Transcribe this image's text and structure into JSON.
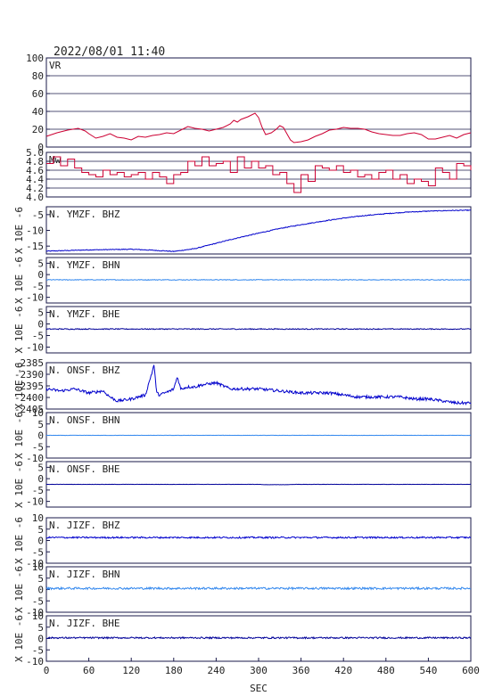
{
  "chart_data": {
    "type": "line",
    "title": "2022/08/01  11:40",
    "xlabel": "SEC",
    "xlim": [
      0,
      600
    ],
    "xticks": [
      "0",
      "60",
      "120",
      "180",
      "240",
      "300",
      "360",
      "420",
      "480",
      "540",
      "600"
    ],
    "panels": [
      {
        "label": "VR",
        "ylabel": "",
        "ylim": [
          0,
          100
        ],
        "yticks": [
          "0",
          "20",
          "40",
          "60",
          "80",
          "100"
        ],
        "grid": true,
        "color": "#cc0033",
        "x": [
          0,
          15,
          30,
          45,
          55,
          60,
          70,
          80,
          90,
          100,
          110,
          120,
          130,
          140,
          150,
          160,
          170,
          180,
          190,
          200,
          210,
          220,
          230,
          240,
          250,
          260,
          265,
          270,
          275,
          285,
          295,
          300,
          305,
          310,
          318,
          325,
          330,
          335,
          340,
          345,
          350,
          360,
          370,
          380,
          390,
          400,
          410,
          420,
          430,
          440,
          450,
          460,
          470,
          480,
          490,
          500,
          510,
          520,
          530,
          540,
          550,
          560,
          570,
          580,
          590,
          600
        ],
        "values": [
          12,
          16,
          19,
          21,
          18,
          15,
          10,
          12,
          15,
          11,
          10,
          8,
          12,
          11,
          13,
          14,
          16,
          15,
          19,
          23,
          21,
          20,
          18,
          20,
          22,
          26,
          30,
          28,
          31,
          34,
          38,
          33,
          22,
          14,
          16,
          20,
          24,
          22,
          15,
          8,
          5,
          6,
          8,
          12,
          15,
          19,
          20,
          22,
          21,
          21,
          20,
          17,
          15,
          14,
          13,
          13,
          15,
          16,
          14,
          9,
          9,
          11,
          13,
          10,
          14,
          16
        ]
      },
      {
        "label": "Mw",
        "ylabel": "",
        "ylim": [
          4.0,
          5.0
        ],
        "yticks": [
          "4.0",
          "4.2",
          "4.4",
          "4.6",
          "4.8",
          "5.0"
        ],
        "grid": true,
        "color": "#cc0033",
        "x": [
          0,
          10,
          20,
          30,
          40,
          50,
          60,
          70,
          80,
          90,
          100,
          110,
          120,
          130,
          140,
          150,
          160,
          170,
          180,
          190,
          200,
          210,
          220,
          230,
          240,
          250,
          260,
          270,
          280,
          290,
          300,
          310,
          320,
          330,
          340,
          350,
          360,
          370,
          380,
          390,
          400,
          410,
          420,
          430,
          440,
          450,
          460,
          470,
          480,
          490,
          500,
          510,
          520,
          530,
          540,
          550,
          560,
          570,
          580,
          590,
          600
        ],
        "values": [
          4.75,
          4.9,
          4.7,
          4.85,
          4.65,
          4.55,
          4.5,
          4.45,
          4.6,
          4.5,
          4.55,
          4.45,
          4.5,
          4.55,
          4.4,
          4.55,
          4.45,
          4.3,
          4.5,
          4.55,
          4.8,
          4.7,
          4.9,
          4.7,
          4.75,
          4.8,
          4.55,
          4.9,
          4.65,
          4.8,
          4.65,
          4.7,
          4.5,
          4.55,
          4.3,
          4.1,
          4.5,
          4.35,
          4.7,
          4.65,
          4.6,
          4.7,
          4.55,
          4.6,
          4.45,
          4.5,
          4.4,
          4.55,
          4.6,
          4.4,
          4.5,
          4.3,
          4.4,
          4.35,
          4.25,
          4.65,
          4.55,
          4.4,
          4.75,
          4.7,
          4.6
        ]
      },
      {
        "label": "N. YMZF. BHZ",
        "ylabel": "X 10E -6",
        "ylim": [
          -16,
          -1
        ],
        "yticks": [
          "-5",
          "-10",
          "-15"
        ],
        "color": "#0000cc",
        "noise": 0.12,
        "x": [
          0,
          30,
          60,
          90,
          120,
          150,
          180,
          210,
          240,
          270,
          300,
          330,
          360,
          390,
          420,
          450,
          480,
          510,
          540,
          570,
          600
        ],
        "values": [
          -15.1,
          -14.9,
          -14.7,
          -14.6,
          -14.5,
          -14.8,
          -15.2,
          -14.3,
          -12.6,
          -10.9,
          -9.4,
          -7.9,
          -6.7,
          -5.6,
          -4.6,
          -3.8,
          -3.2,
          -2.7,
          -2.4,
          -2.2,
          -2.1
        ]
      },
      {
        "label": "N. YMZF. BHN",
        "ylabel": "X 10E -6",
        "ylim": [
          -10,
          10
        ],
        "yticks": [
          "5",
          "0",
          "-5",
          "-10"
        ],
        "color": "#3388ee",
        "noise": 0.15,
        "x": [
          0,
          600
        ],
        "values": [
          0.2,
          0.2
        ]
      },
      {
        "label": "N. YMZF. BHE",
        "ylabel": "X 10E -6",
        "ylim": [
          -10,
          10
        ],
        "yticks": [
          "5",
          "0",
          "-5",
          "-10"
        ],
        "color": "#000099",
        "noise": 0.2,
        "x": [
          0,
          600
        ],
        "values": [
          0.3,
          0.3
        ]
      },
      {
        "label": "N. ONSF. BHZ",
        "ylabel": "X 10E -6",
        "ylim": [
          -2407,
          -2384
        ],
        "yticks": [
          "-2385",
          "-2390",
          "-2395",
          "-2400",
          "-2405"
        ],
        "color": "#0000cc",
        "noise": 0.7,
        "x": [
          0,
          20,
          40,
          60,
          80,
          90,
          100,
          120,
          140,
          150,
          152,
          156,
          160,
          175,
          180,
          185,
          190,
          200,
          210,
          220,
          240,
          260,
          300,
          330,
          360,
          400,
          420,
          440,
          460,
          480,
          500,
          520,
          540,
          560,
          580,
          600
        ],
        "values": [
          -2397,
          -2398,
          -2397,
          -2399,
          -2398,
          -2401,
          -2403,
          -2402,
          -2400,
          -2388,
          -2385,
          -2399,
          -2400,
          -2398,
          -2397,
          -2391,
          -2397,
          -2396,
          -2396,
          -2395,
          -2394,
          -2397,
          -2397,
          -2398,
          -2399,
          -2399,
          -2400,
          -2401,
          -2401,
          -2401,
          -2401,
          -2402,
          -2402,
          -2403,
          -2404,
          -2404
        ]
      },
      {
        "label": "N. ONSF. BHN",
        "ylabel": "X 10E -6",
        "ylim": [
          -10,
          10
        ],
        "yticks": [
          "10",
          "5",
          "0",
          "-5",
          "-10"
        ],
        "color": "#3388ee",
        "noise": 0.06,
        "x": [
          0,
          600
        ],
        "values": [
          0.0,
          0.0
        ]
      },
      {
        "label": "N. ONSF. BHE",
        "ylabel": "X 10E -6",
        "ylim": [
          -10,
          10
        ],
        "yticks": [
          "5",
          "0",
          "-5",
          "-10"
        ],
        "color": "#000099",
        "noise": 0.05,
        "x": [
          0,
          300,
          310,
          340,
          350,
          600
        ],
        "values": [
          0.0,
          0.0,
          -0.15,
          -0.15,
          0.0,
          0.0
        ]
      },
      {
        "label": "N. JIZF. BHZ",
        "ylabel": "X 10E -6",
        "ylim": [
          -10,
          10
        ],
        "yticks": [
          "10",
          "5",
          "0",
          "-5",
          "-10"
        ],
        "color": "#0000cc",
        "noise": 0.35,
        "x": [
          0,
          600
        ],
        "values": [
          1.3,
          1.3
        ]
      },
      {
        "label": "N. JIZF. BHN",
        "ylabel": "X 10E -6",
        "ylim": [
          -10,
          10
        ],
        "yticks": [
          "10",
          "5",
          "0",
          "-5",
          "-10"
        ],
        "color": "#3388ee",
        "noise": 0.45,
        "x": [
          0,
          600
        ],
        "values": [
          0.5,
          0.5
        ]
      },
      {
        "label": "N. JIZF. BHE",
        "ylabel": "X 10E -6",
        "ylim": [
          -10,
          10
        ],
        "yticks": [
          "10",
          "5",
          "0",
          "-5",
          "-10"
        ],
        "color": "#000099",
        "noise": 0.35,
        "x": [
          0,
          600
        ],
        "values": [
          0.3,
          0.3
        ]
      }
    ]
  }
}
